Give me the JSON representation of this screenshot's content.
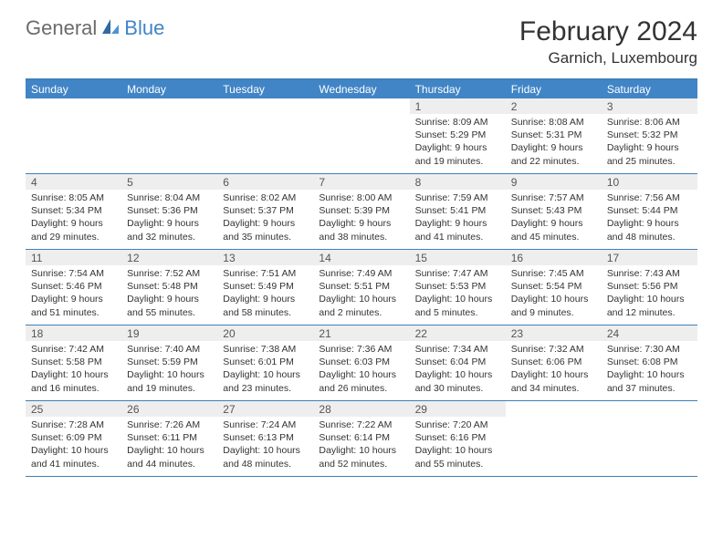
{
  "brand": {
    "part1": "General",
    "part2": "Blue"
  },
  "title": "February 2024",
  "location": "Garnich, Luxembourg",
  "colors": {
    "header_bg": "#4185c6",
    "rule": "#3e7fb8",
    "daynum_bg": "#eeeeee",
    "text": "#333333",
    "logo_grey": "#6b6b6b"
  },
  "dow": [
    "Sunday",
    "Monday",
    "Tuesday",
    "Wednesday",
    "Thursday",
    "Friday",
    "Saturday"
  ],
  "weeks": [
    [
      {
        "n": "",
        "sr": "",
        "ss": "",
        "dl": ""
      },
      {
        "n": "",
        "sr": "",
        "ss": "",
        "dl": ""
      },
      {
        "n": "",
        "sr": "",
        "ss": "",
        "dl": ""
      },
      {
        "n": "",
        "sr": "",
        "ss": "",
        "dl": ""
      },
      {
        "n": "1",
        "sr": "Sunrise: 8:09 AM",
        "ss": "Sunset: 5:29 PM",
        "dl": "Daylight: 9 hours and 19 minutes."
      },
      {
        "n": "2",
        "sr": "Sunrise: 8:08 AM",
        "ss": "Sunset: 5:31 PM",
        "dl": "Daylight: 9 hours and 22 minutes."
      },
      {
        "n": "3",
        "sr": "Sunrise: 8:06 AM",
        "ss": "Sunset: 5:32 PM",
        "dl": "Daylight: 9 hours and 25 minutes."
      }
    ],
    [
      {
        "n": "4",
        "sr": "Sunrise: 8:05 AM",
        "ss": "Sunset: 5:34 PM",
        "dl": "Daylight: 9 hours and 29 minutes."
      },
      {
        "n": "5",
        "sr": "Sunrise: 8:04 AM",
        "ss": "Sunset: 5:36 PM",
        "dl": "Daylight: 9 hours and 32 minutes."
      },
      {
        "n": "6",
        "sr": "Sunrise: 8:02 AM",
        "ss": "Sunset: 5:37 PM",
        "dl": "Daylight: 9 hours and 35 minutes."
      },
      {
        "n": "7",
        "sr": "Sunrise: 8:00 AM",
        "ss": "Sunset: 5:39 PM",
        "dl": "Daylight: 9 hours and 38 minutes."
      },
      {
        "n": "8",
        "sr": "Sunrise: 7:59 AM",
        "ss": "Sunset: 5:41 PM",
        "dl": "Daylight: 9 hours and 41 minutes."
      },
      {
        "n": "9",
        "sr": "Sunrise: 7:57 AM",
        "ss": "Sunset: 5:43 PM",
        "dl": "Daylight: 9 hours and 45 minutes."
      },
      {
        "n": "10",
        "sr": "Sunrise: 7:56 AM",
        "ss": "Sunset: 5:44 PM",
        "dl": "Daylight: 9 hours and 48 minutes."
      }
    ],
    [
      {
        "n": "11",
        "sr": "Sunrise: 7:54 AM",
        "ss": "Sunset: 5:46 PM",
        "dl": "Daylight: 9 hours and 51 minutes."
      },
      {
        "n": "12",
        "sr": "Sunrise: 7:52 AM",
        "ss": "Sunset: 5:48 PM",
        "dl": "Daylight: 9 hours and 55 minutes."
      },
      {
        "n": "13",
        "sr": "Sunrise: 7:51 AM",
        "ss": "Sunset: 5:49 PM",
        "dl": "Daylight: 9 hours and 58 minutes."
      },
      {
        "n": "14",
        "sr": "Sunrise: 7:49 AM",
        "ss": "Sunset: 5:51 PM",
        "dl": "Daylight: 10 hours and 2 minutes."
      },
      {
        "n": "15",
        "sr": "Sunrise: 7:47 AM",
        "ss": "Sunset: 5:53 PM",
        "dl": "Daylight: 10 hours and 5 minutes."
      },
      {
        "n": "16",
        "sr": "Sunrise: 7:45 AM",
        "ss": "Sunset: 5:54 PM",
        "dl": "Daylight: 10 hours and 9 minutes."
      },
      {
        "n": "17",
        "sr": "Sunrise: 7:43 AM",
        "ss": "Sunset: 5:56 PM",
        "dl": "Daylight: 10 hours and 12 minutes."
      }
    ],
    [
      {
        "n": "18",
        "sr": "Sunrise: 7:42 AM",
        "ss": "Sunset: 5:58 PM",
        "dl": "Daylight: 10 hours and 16 minutes."
      },
      {
        "n": "19",
        "sr": "Sunrise: 7:40 AM",
        "ss": "Sunset: 5:59 PM",
        "dl": "Daylight: 10 hours and 19 minutes."
      },
      {
        "n": "20",
        "sr": "Sunrise: 7:38 AM",
        "ss": "Sunset: 6:01 PM",
        "dl": "Daylight: 10 hours and 23 minutes."
      },
      {
        "n": "21",
        "sr": "Sunrise: 7:36 AM",
        "ss": "Sunset: 6:03 PM",
        "dl": "Daylight: 10 hours and 26 minutes."
      },
      {
        "n": "22",
        "sr": "Sunrise: 7:34 AM",
        "ss": "Sunset: 6:04 PM",
        "dl": "Daylight: 10 hours and 30 minutes."
      },
      {
        "n": "23",
        "sr": "Sunrise: 7:32 AM",
        "ss": "Sunset: 6:06 PM",
        "dl": "Daylight: 10 hours and 34 minutes."
      },
      {
        "n": "24",
        "sr": "Sunrise: 7:30 AM",
        "ss": "Sunset: 6:08 PM",
        "dl": "Daylight: 10 hours and 37 minutes."
      }
    ],
    [
      {
        "n": "25",
        "sr": "Sunrise: 7:28 AM",
        "ss": "Sunset: 6:09 PM",
        "dl": "Daylight: 10 hours and 41 minutes."
      },
      {
        "n": "26",
        "sr": "Sunrise: 7:26 AM",
        "ss": "Sunset: 6:11 PM",
        "dl": "Daylight: 10 hours and 44 minutes."
      },
      {
        "n": "27",
        "sr": "Sunrise: 7:24 AM",
        "ss": "Sunset: 6:13 PM",
        "dl": "Daylight: 10 hours and 48 minutes."
      },
      {
        "n": "28",
        "sr": "Sunrise: 7:22 AM",
        "ss": "Sunset: 6:14 PM",
        "dl": "Daylight: 10 hours and 52 minutes."
      },
      {
        "n": "29",
        "sr": "Sunrise: 7:20 AM",
        "ss": "Sunset: 6:16 PM",
        "dl": "Daylight: 10 hours and 55 minutes."
      },
      {
        "n": "",
        "sr": "",
        "ss": "",
        "dl": ""
      },
      {
        "n": "",
        "sr": "",
        "ss": "",
        "dl": ""
      }
    ]
  ]
}
